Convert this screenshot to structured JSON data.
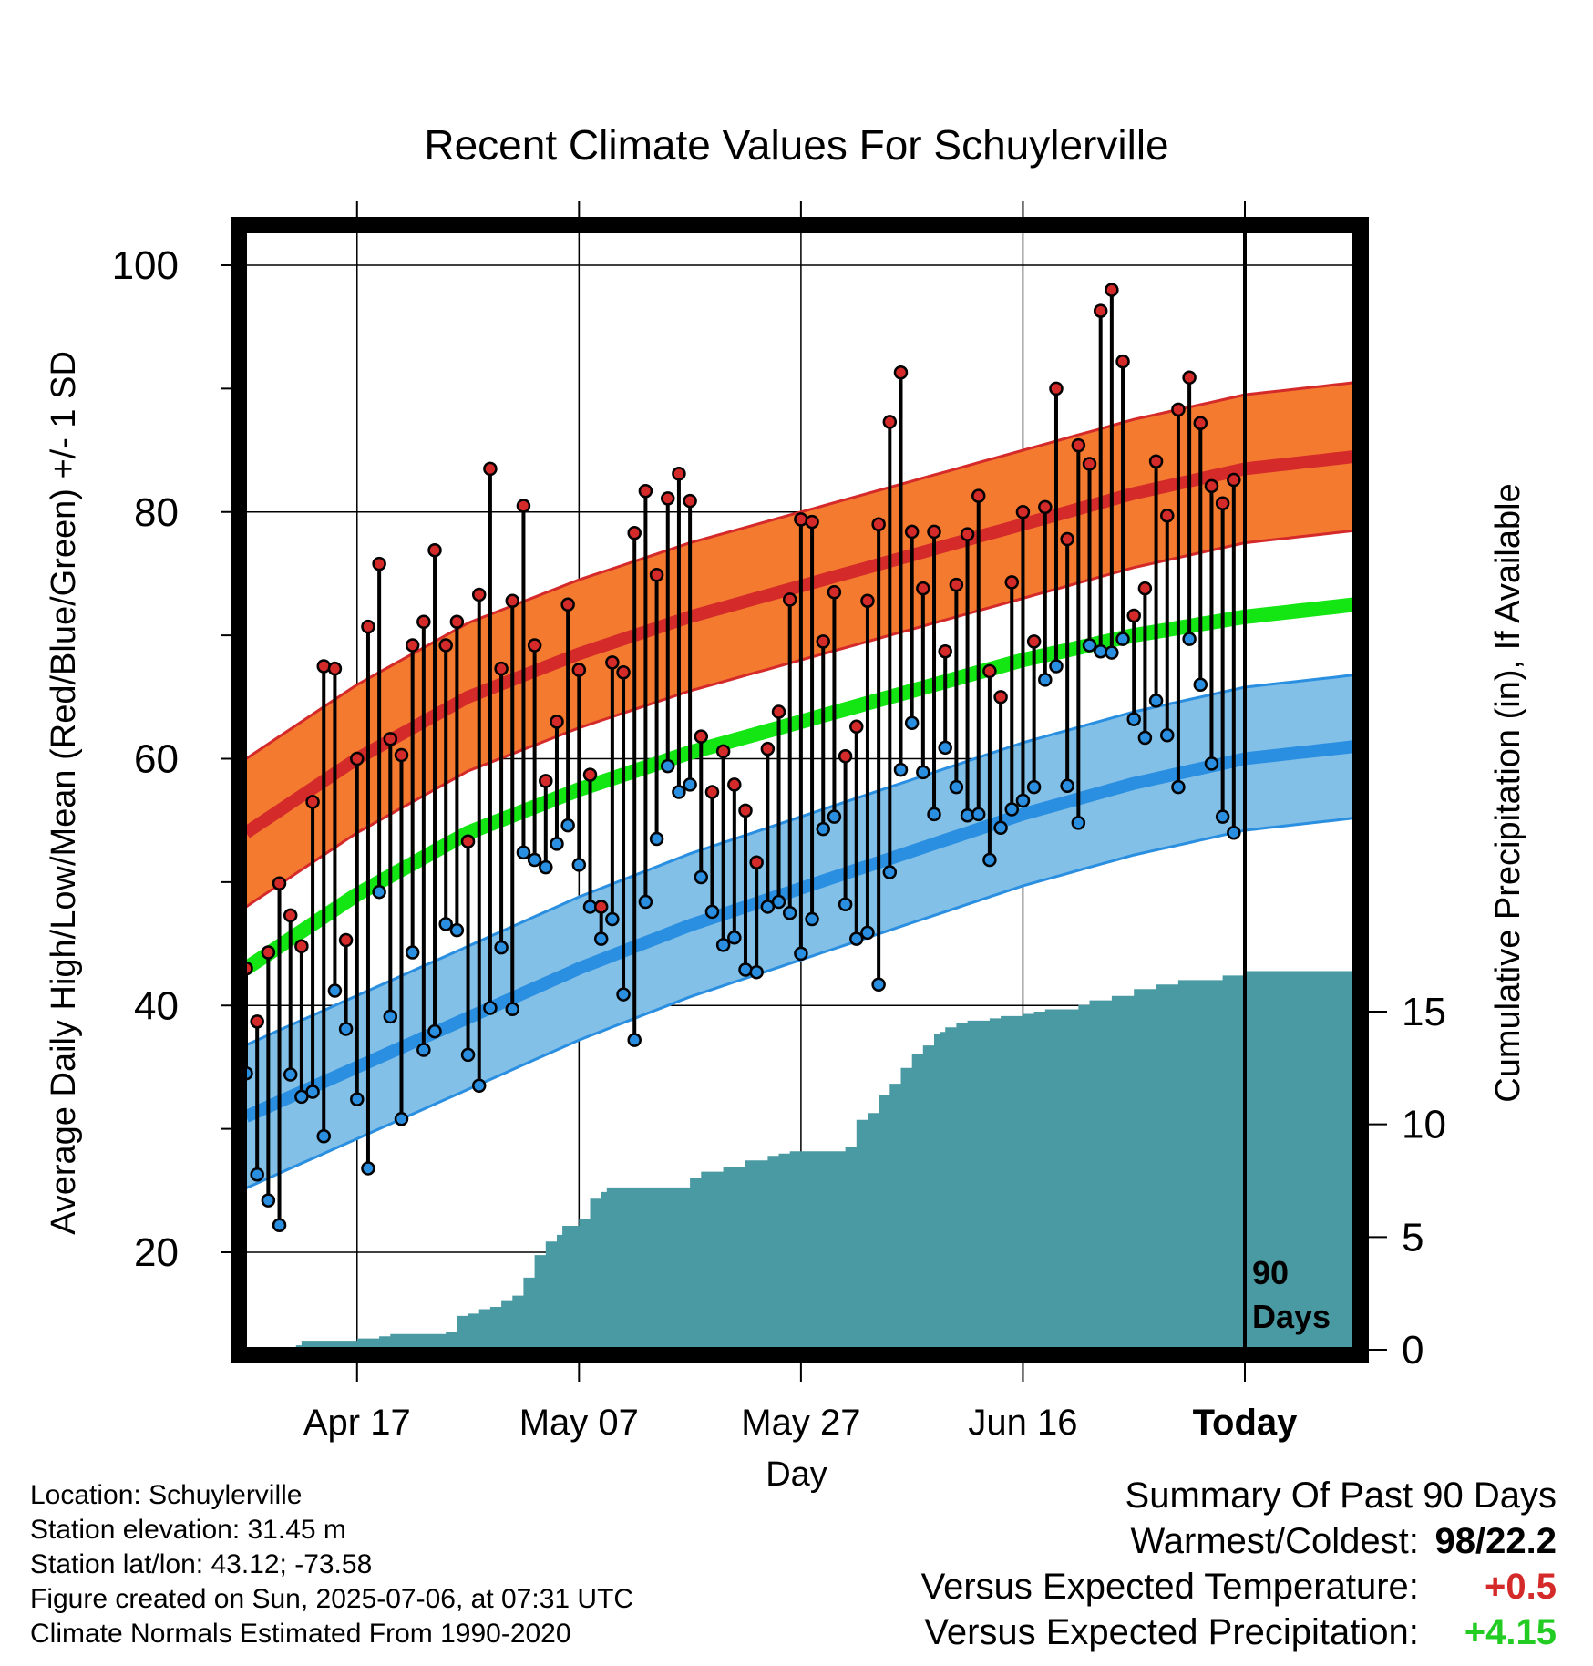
{
  "chart_data": {
    "type": "line",
    "title": "Recent Climate Values For Schuylerville",
    "xlabel": "Day",
    "ylabel": "Average Daily High/Low/Mean (Red/Blue/Green) +/- 1 SD",
    "y2label": "Cumulative Precipitation (in), If Available",
    "ylim": [
      12,
      103
    ],
    "y2lim": [
      0,
      20
    ],
    "y_ticks": [
      20,
      40,
      60,
      80,
      100
    ],
    "y2_ticks": [
      0,
      5,
      10,
      15
    ],
    "x_ticks": [
      {
        "day": 10,
        "label": "Apr 17"
      },
      {
        "day": 30,
        "label": "May 07"
      },
      {
        "day": 50,
        "label": "May 27"
      },
      {
        "day": 70,
        "label": "Jun 16"
      },
      {
        "day": 90,
        "label": "Today"
      }
    ],
    "today_marker": {
      "day": 90,
      "label_line1": "90",
      "label_line2": "Days"
    },
    "grid": true,
    "normals": {
      "day": [
        0,
        10,
        20,
        30,
        40,
        50,
        60,
        70,
        80,
        90,
        100
      ],
      "high_mean": [
        54,
        60,
        65,
        68.5,
        71.5,
        74,
        76.5,
        79,
        81.5,
        83.5,
        84.5
      ],
      "high_sd": 6,
      "low_mean": [
        31,
        35,
        39,
        43,
        46.5,
        49.5,
        52.5,
        55.5,
        58,
        60,
        61
      ],
      "low_sd": 5.8,
      "mean_temp": [
        43,
        49,
        54,
        57.5,
        60.5,
        63,
        65.5,
        68,
        70,
        71.5,
        72.5
      ]
    },
    "series": [
      {
        "name": "High",
        "color": "#d42a2a",
        "values": [
          43,
          38.7,
          44.3,
          49.9,
          47.3,
          44.8,
          56.5,
          67.5,
          67.3,
          45.3,
          60,
          70.7,
          75.8,
          61.6,
          60.3,
          69.2,
          71.1,
          76.9,
          69.2,
          71.1,
          53.3,
          73.3,
          83.5,
          67.3,
          72.8,
          80.5,
          69.2,
          58.2,
          63,
          72.5,
          67.2,
          58.7,
          48,
          67.8,
          67,
          78.3,
          81.7,
          74.9,
          81.1,
          83.1,
          80.9,
          61.8,
          57.3,
          60.6,
          57.9,
          55.8,
          51.6,
          60.8,
          63.8,
          72.9,
          79.4,
          79.2,
          69.5,
          73.5,
          60.2,
          62.6,
          72.8,
          79,
          87.3,
          91.3,
          78.4,
          73.8,
          78.4,
          68.7,
          74.1,
          78.2,
          81.3,
          67.1,
          65,
          74.3,
          80,
          69.5,
          80.4,
          90,
          77.8,
          85.4,
          83.9,
          96.3,
          98,
          92.2,
          71.6,
          73.8,
          84.1,
          79.7,
          88.3,
          90.9,
          87.2,
          82.1,
          80.7,
          82.6
        ]
      },
      {
        "name": "Low",
        "color": "#2a8fe0",
        "values": [
          34.5,
          26.3,
          24.2,
          22.2,
          34.4,
          32.6,
          33,
          29.4,
          41.2,
          38.1,
          32.4,
          26.8,
          49.2,
          39.1,
          30.8,
          44.3,
          36.4,
          37.9,
          46.6,
          46.1,
          36,
          33.5,
          39.8,
          44.7,
          39.7,
          52.4,
          51.8,
          51.2,
          53.1,
          54.6,
          51.4,
          48,
          45.4,
          47,
          40.9,
          37.2,
          48.4,
          53.5,
          59.4,
          57.3,
          57.9,
          50.4,
          47.6,
          44.9,
          45.5,
          42.9,
          42.7,
          48,
          48.4,
          47.5,
          44.2,
          47,
          54.3,
          55.3,
          48.2,
          45.4,
          45.9,
          41.7,
          50.8,
          59.1,
          62.9,
          58.9,
          55.5,
          60.9,
          57.7,
          55.4,
          55.5,
          51.8,
          54.4,
          55.9,
          56.6,
          57.7,
          66.4,
          67.5,
          57.8,
          54.8,
          69.2,
          68.7,
          68.6,
          69.7,
          63.2,
          61.7,
          64.7,
          61.9,
          57.7,
          69.7,
          66,
          59.6,
          55.3,
          54
        ]
      }
    ],
    "precip_cumulative": {
      "day": [
        0,
        4,
        4.5,
        5,
        10,
        12,
        13,
        18,
        19,
        20,
        21,
        22,
        23,
        24,
        25,
        26,
        27,
        28,
        28.5,
        29,
        30,
        31,
        32,
        32.5,
        38,
        40,
        41,
        43,
        45,
        47,
        48,
        49,
        50,
        52,
        53,
        54,
        55,
        56,
        57,
        58,
        59,
        60,
        61,
        62,
        62.5,
        63,
        64,
        65,
        67,
        68,
        70,
        71,
        72,
        75,
        76,
        78,
        80,
        82,
        84,
        88,
        90,
        100
      ],
      "values": [
        0,
        0,
        0.2,
        0.4,
        0.5,
        0.6,
        0.7,
        0.8,
        1.5,
        1.6,
        1.8,
        1.9,
        2.2,
        2.4,
        3.2,
        4.2,
        4.8,
        5.1,
        5.5,
        5.5,
        5.8,
        6.7,
        7,
        7.2,
        7.2,
        7.6,
        7.9,
        8.1,
        8.4,
        8.6,
        8.7,
        8.8,
        8.8,
        8.8,
        8.8,
        9,
        10.2,
        10.5,
        11.3,
        11.8,
        12.5,
        13.1,
        13.5,
        14,
        14.1,
        14.3,
        14.5,
        14.6,
        14.7,
        14.8,
        14.9,
        15,
        15.1,
        15.3,
        15.5,
        15.7,
        16,
        16.2,
        16.4,
        16.6,
        16.8,
        16.8
      ]
    }
  },
  "info": {
    "location": "Location: Schuylerville",
    "elevation": "Station elevation: 31.45 m",
    "latlon": "Station lat/lon: 43.12; -73.58",
    "created": "Figure created on Sun, 2025-07-06, at 07:31 UTC",
    "normals": "Climate Normals Estimated From 1990-2020"
  },
  "summary": {
    "heading": "Summary Of Past 90 Days",
    "warmest_coldest_label": "Warmest/Coldest:",
    "warmest_coldest_value": "98/22.2",
    "temp_label": "Versus Expected Temperature:",
    "temp_value": "+0.5",
    "temp_color": "#d42a2a",
    "precip_label": "Versus Expected Precipitation:",
    "precip_value": "+4.15",
    "precip_color": "#22cc22"
  },
  "colors": {
    "high_band": "#f47a30",
    "high_line": "#d42a2a",
    "low_band": "#82c0e8",
    "low_line": "#2a8fe0",
    "mean_line": "#13e613",
    "precip_fill": "#4a9aa3"
  }
}
